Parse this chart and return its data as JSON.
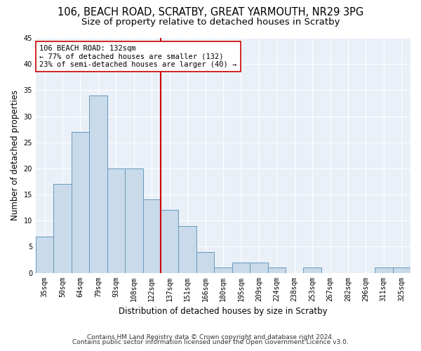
{
  "title1": "106, BEACH ROAD, SCRATBY, GREAT YARMOUTH, NR29 3PG",
  "title2": "Size of property relative to detached houses in Scratby",
  "xlabel": "Distribution of detached houses by size in Scratby",
  "ylabel": "Number of detached properties",
  "categories": [
    "35sqm",
    "50sqm",
    "64sqm",
    "79sqm",
    "93sqm",
    "108sqm",
    "122sqm",
    "137sqm",
    "151sqm",
    "166sqm",
    "180sqm",
    "195sqm",
    "209sqm",
    "224sqm",
    "238sqm",
    "253sqm",
    "267sqm",
    "282sqm",
    "296sqm",
    "311sqm",
    "325sqm"
  ],
  "values": [
    7,
    17,
    27,
    34,
    20,
    20,
    14,
    12,
    9,
    4,
    1,
    2,
    2,
    1,
    0,
    1,
    0,
    0,
    0,
    1,
    1
  ],
  "bar_color": "#c9daea",
  "bar_edge_color": "#6699bb",
  "vline_x": 6.5,
  "annotation_line1": "106 BEACH ROAD: 132sqm",
  "annotation_line2": "← 77% of detached houses are smaller (132)",
  "annotation_line3": "23% of semi-detached houses are larger (40) →",
  "vline_color": "#cc0000",
  "ylim": [
    0,
    45
  ],
  "yticks": [
    0,
    5,
    10,
    15,
    20,
    25,
    30,
    35,
    40,
    45
  ],
  "footnote1": "Contains HM Land Registry data © Crown copyright and database right 2024.",
  "footnote2": "Contains public sector information licensed under the Open Government Licence v3.0.",
  "bg_color": "#eaf0f8",
  "title_fontsize": 10.5,
  "subtitle_fontsize": 9.5,
  "tick_fontsize": 7,
  "xlabel_fontsize": 8.5,
  "ylabel_fontsize": 8.5,
  "footnote_fontsize": 6.5,
  "annot_fontsize": 7.5
}
